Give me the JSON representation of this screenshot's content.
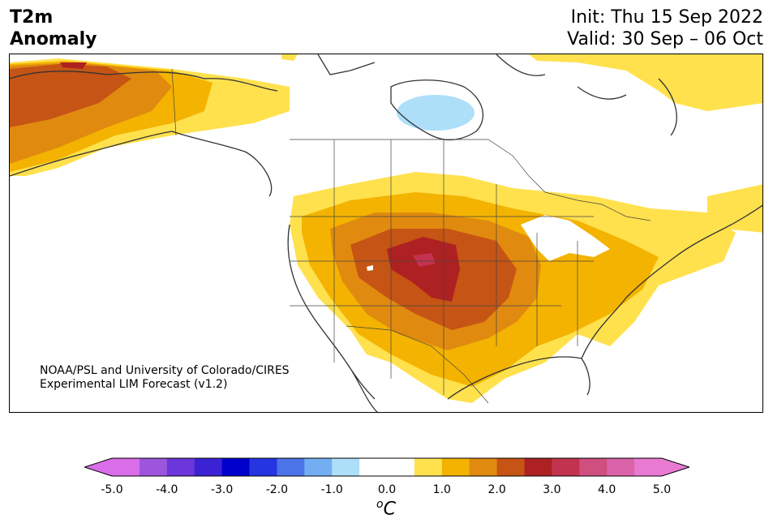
{
  "header": {
    "title_line1": "T2m",
    "title_line2": "Anomaly",
    "init": "Init: Thu 15 Sep 2022",
    "valid": "Valid: 30 Sep – 06 Oct"
  },
  "credit": {
    "line1": "NOAA/PSL and University of Colorado/CIRES",
    "line2": "Experimental LIM Forecast (v1.2)"
  },
  "colorbar": {
    "ticks": [
      "-5.0",
      "-4.0",
      "-3.0",
      "-2.0",
      "-1.0",
      "0.0",
      "1.0",
      "2.0",
      "3.0",
      "4.0",
      "5.0"
    ],
    "unit_sup": "o",
    "unit": "C",
    "colors": [
      "#d96ee8",
      "#9d55de",
      "#6b37da",
      "#3b22d4",
      "#0000cd",
      "#2535e0",
      "#4a74e8",
      "#74aef2",
      "#addff9",
      "#ffffff",
      "#ffffff",
      "#ffe14d",
      "#f3b300",
      "#e08a10",
      "#c65414",
      "#ae2122",
      "#c23350",
      "#cf4f7e",
      "#db63a9",
      "#e87ad2"
    ],
    "extend_min_color": "#d96ee8",
    "extend_max_color": "#e87ad2"
  },
  "map": {
    "region": "North America",
    "variable": "2-meter temperature anomaly"
  }
}
